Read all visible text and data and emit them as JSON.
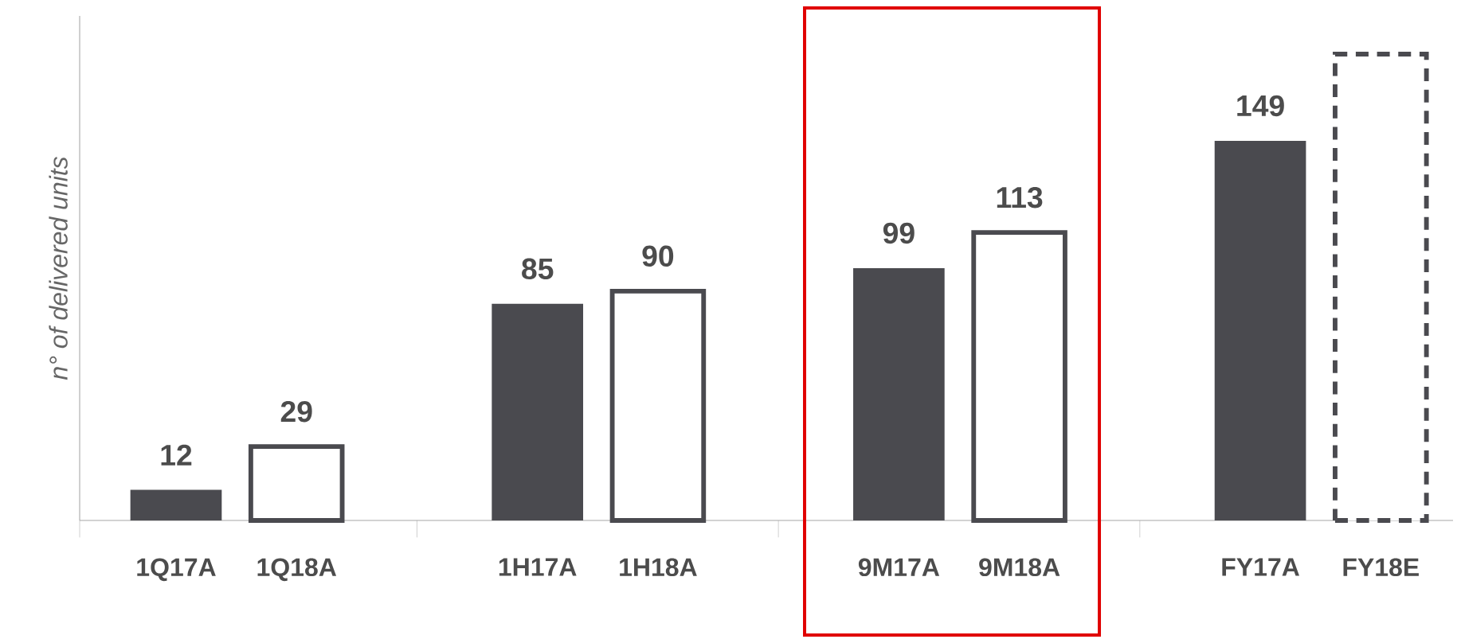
{
  "chart_data": {
    "type": "bar",
    "ylabel": "n° of delivered units",
    "categories": [
      "1Q17A",
      "1Q18A",
      null,
      "1H17A",
      "1H18A",
      null,
      "9M17A",
      "9M18A",
      null,
      "FY17A",
      "FY18E"
    ],
    "series": [
      {
        "color": "#4a4a4f",
        "values": [
          12,
          null,
          null,
          85,
          null,
          null,
          99,
          null,
          null,
          149,
          null
        ],
        "value_labels": [
          "12",
          null,
          null,
          "85",
          null,
          null,
          "99",
          null,
          null,
          "149",
          null
        ]
      },
      {
        "color": "#4a4a4f",
        "line_style": "solid",
        "values": [
          null,
          29,
          null,
          null,
          90,
          null,
          null,
          113,
          null,
          null,
          null
        ],
        "value_labels": [
          null,
          "29",
          null,
          null,
          "90",
          null,
          null,
          "113",
          null,
          null,
          null
        ]
      },
      {
        "color": "#4a4a4f",
        "line_style": "dashed",
        "values": [
          null,
          null,
          null,
          null,
          null,
          null,
          null,
          null,
          null,
          null,
          183
        ],
        "value_labels": [
          null,
          null,
          null,
          null,
          null,
          null,
          null,
          null,
          null,
          null,
          null
        ]
      }
    ],
    "ylim": [
      0,
      198
    ],
    "tick_labels": "x"
  }
}
